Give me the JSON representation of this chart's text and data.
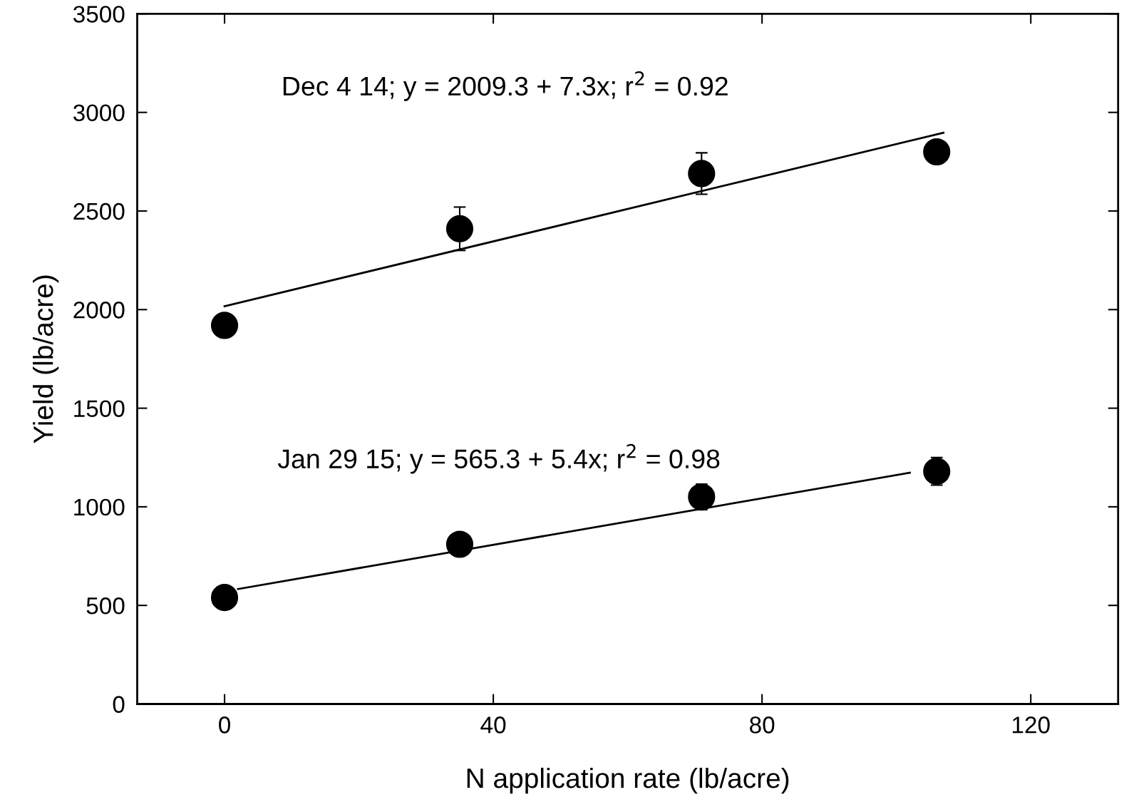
{
  "chart_data": {
    "type": "scatter",
    "xlabel": "N application rate (lb/acre)",
    "ylabel": "Yield (lb/acre)",
    "xlim": [
      -13,
      133
    ],
    "xticks": [
      0,
      40,
      80,
      120
    ],
    "ylim": [
      0,
      3500
    ],
    "yticks": [
      0,
      500,
      1000,
      1500,
      2000,
      2500,
      3000,
      3500
    ],
    "grid": false,
    "legend": false,
    "marker": "circle",
    "series": [
      {
        "color": "#000000",
        "x": [
          0,
          35,
          71,
          106
        ],
        "values": [
          1920,
          2410,
          2690,
          2800
        ],
        "errors": [
          30,
          110,
          105,
          30
        ]
      },
      {
        "color": "#000000",
        "x": [
          0,
          35,
          71,
          106
        ],
        "values": [
          540,
          810,
          1050,
          1180
        ],
        "errors": [
          50,
          30,
          65,
          70
        ]
      },
      {
        "type": "line",
        "color": "#000000",
        "x": [
          0,
          107
        ],
        "values": [
          2017,
          2897
        ],
        "line_style": "solid",
        "marker": "none"
      },
      {
        "type": "line",
        "color": "#000000",
        "x": [
          2,
          102
        ],
        "values": [
          583,
          1173
        ],
        "line_style": "solid",
        "marker": "none"
      }
    ],
    "annotations": [
      "Dec 4 14; y = 2009.3 + 7.3x; r$^{2}$ = 0.92",
      "Jan 29 15; y = 565.3 + 5.4x; r$^{2}$ = 0.98"
    ]
  }
}
